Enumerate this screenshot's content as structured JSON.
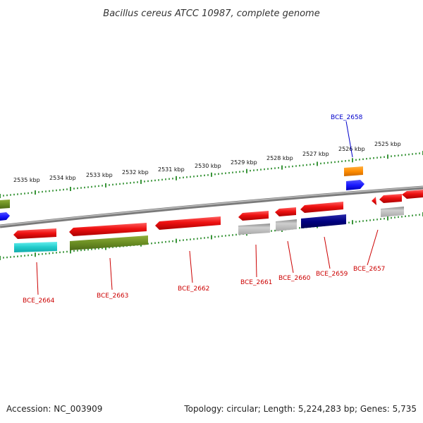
{
  "title": "Bacillus cereus ATCC 10987, complete genome",
  "footer": {
    "accession": "Accession: NC_003909",
    "summary": "Topology: circular; Length: 5,224,283 bp; Genes: 5,735"
  },
  "ticks": [
    {
      "label": "2525 kbp"
    },
    {
      "label": "2526 kbp"
    },
    {
      "label": "2527 kbp"
    },
    {
      "label": "2528 kbp"
    },
    {
      "label": "2529 kbp"
    },
    {
      "label": "2530 kbp"
    },
    {
      "label": "2531 kbp"
    },
    {
      "label": "2532 kbp"
    },
    {
      "label": "2533 kbp"
    },
    {
      "label": "2534 kbp"
    },
    {
      "label": "2535 kbp"
    }
  ],
  "gene_labels": [
    {
      "id": "BCE_2658",
      "color": "#0000cc"
    },
    {
      "id": "BCE_2657",
      "color": "#cc0000"
    },
    {
      "id": "BCE_2659",
      "color": "#cc0000"
    },
    {
      "id": "BCE_2660",
      "color": "#cc0000"
    },
    {
      "id": "BCE_2661",
      "color": "#cc0000"
    },
    {
      "id": "BCE_2662",
      "color": "#cc0000"
    },
    {
      "id": "BCE_2663",
      "color": "#cc0000"
    },
    {
      "id": "BCE_2664",
      "color": "#cc0000"
    }
  ],
  "colors": {
    "gene": "#ee1111",
    "backbone": "#888888",
    "tick": "#228822",
    "cyan_feature": "#22cccc",
    "olive_feature": "#6b8e23",
    "grey_feature": "#b0b0b0",
    "navy_feature": "#000080",
    "blue_feature": "#1a1aff",
    "orange_feature": "#ff8c00"
  }
}
